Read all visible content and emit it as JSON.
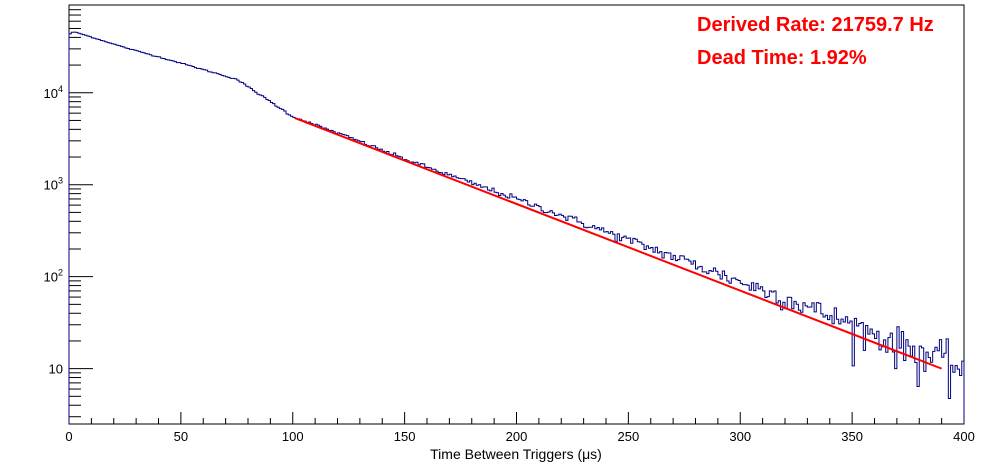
{
  "chart_data": {
    "type": "line",
    "title": "",
    "xlabel": "Time Between Triggers (μs)",
    "ylabel": "",
    "xlim": [
      0,
      400
    ],
    "ylim": [
      2.5,
      90000
    ],
    "yscale": "log",
    "grid": false,
    "x_ticks": [
      0,
      50,
      100,
      150,
      200,
      250,
      300,
      350,
      400
    ],
    "x_tick_labels": [
      "0",
      "50",
      "100",
      "150",
      "200",
      "250",
      "300",
      "350",
      "400"
    ],
    "y_ticks": [
      10,
      100,
      1000,
      10000
    ],
    "y_tick_labels": [
      {
        "base": "10",
        "exp": ""
      },
      {
        "base": "10",
        "exp": "2"
      },
      {
        "base": "10",
        "exp": "3"
      },
      {
        "base": "10",
        "exp": "4"
      }
    ],
    "series": [
      {
        "kind": "histogram",
        "color": "#000080",
        "bin_width": 1,
        "x": [
          0,
          2,
          5,
          25,
          50,
          75,
          100,
          125,
          150,
          175,
          200,
          225,
          250,
          275,
          300,
          325,
          350,
          375,
          400
        ],
        "y": [
          43000,
          46000,
          44000,
          31000,
          21000,
          14000,
          5500,
          3300,
          1900,
          1150,
          700,
          420,
          250,
          150,
          88,
          53,
          30,
          17,
          10
        ]
      },
      {
        "kind": "fit",
        "color": "#ff0000",
        "x": [
          101,
          390
        ],
        "y": [
          5300,
          10
        ]
      }
    ],
    "annotations": [
      {
        "text": "Derived Rate: 21759.7 Hz",
        "color": "#ff0000"
      },
      {
        "text": "Dead Time: 1.92%",
        "color": "#ff0000"
      }
    ]
  }
}
